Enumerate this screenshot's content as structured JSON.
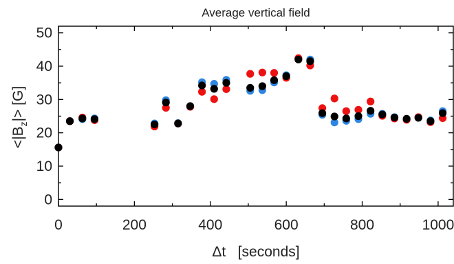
{
  "chart_data": {
    "type": "scatter",
    "title": "Average vertical field",
    "xlabel": "Δt   [seconds]",
    "ylabel_parts": {
      "pre": "<|B",
      "sub": "z",
      "post": "|>   [G]"
    },
    "xlim": [
      0,
      1040
    ],
    "ylim": [
      -2,
      52
    ],
    "x_ticks": [
      0,
      200,
      400,
      600,
      800,
      1000
    ],
    "y_ticks": [
      0,
      10,
      20,
      30,
      40,
      50
    ],
    "x_tick_labels": [
      "0",
      "200",
      "400",
      "600",
      "800",
      "1000"
    ],
    "y_tick_labels": [
      "0",
      "10",
      "20",
      "30",
      "40",
      "50"
    ],
    "grid": false,
    "series": [
      {
        "color": "#2f86e0",
        "points": [
          [
            0,
            15.6
          ],
          [
            30,
            23.5
          ],
          [
            63,
            24.1
          ],
          [
            95,
            24.3
          ],
          [
            253,
            22.8
          ],
          [
            283,
            29.8
          ],
          [
            315,
            22.9
          ],
          [
            347,
            28.0
          ],
          [
            378,
            35.2
          ],
          [
            410,
            34.7
          ],
          [
            442,
            35.9
          ],
          [
            505,
            32.6
          ],
          [
            537,
            32.8
          ],
          [
            568,
            35.1
          ],
          [
            600,
            37.3
          ],
          [
            632,
            42.1
          ],
          [
            663,
            42.0
          ],
          [
            695,
            25.4
          ],
          [
            727,
            23.1
          ],
          [
            758,
            23.6
          ],
          [
            790,
            24.1
          ],
          [
            822,
            25.7
          ],
          [
            853,
            25.7
          ],
          [
            885,
            24.7
          ],
          [
            917,
            24.1
          ],
          [
            948,
            24.6
          ],
          [
            980,
            23.7
          ],
          [
            1012,
            26.5
          ]
        ]
      },
      {
        "color": "#ee1111",
        "points": [
          [
            0,
            15.6
          ],
          [
            30,
            23.5
          ],
          [
            63,
            24.6
          ],
          [
            95,
            23.8
          ],
          [
            253,
            21.9
          ],
          [
            283,
            27.5
          ],
          [
            315,
            22.8
          ],
          [
            347,
            27.8
          ],
          [
            378,
            32.3
          ],
          [
            410,
            30.1
          ],
          [
            442,
            33.1
          ],
          [
            505,
            37.7
          ],
          [
            537,
            38.1
          ],
          [
            568,
            38.0
          ],
          [
            600,
            36.5
          ],
          [
            632,
            42.4
          ],
          [
            663,
            40.2
          ],
          [
            695,
            27.4
          ],
          [
            727,
            30.3
          ],
          [
            758,
            26.5
          ],
          [
            790,
            26.9
          ],
          [
            822,
            29.4
          ],
          [
            853,
            25.1
          ],
          [
            885,
            24.3
          ],
          [
            917,
            23.9
          ],
          [
            948,
            24.7
          ],
          [
            980,
            23.2
          ],
          [
            1012,
            24.4
          ]
        ]
      },
      {
        "color": "#000000",
        "points": [
          [
            0,
            15.6
          ],
          [
            30,
            23.5
          ],
          [
            63,
            24.3
          ],
          [
            95,
            24.1
          ],
          [
            253,
            22.5
          ],
          [
            283,
            29.1
          ],
          [
            315,
            22.8
          ],
          [
            347,
            28.0
          ],
          [
            378,
            34.2
          ],
          [
            410,
            33.2
          ],
          [
            442,
            35.0
          ],
          [
            505,
            33.5
          ],
          [
            537,
            34.0
          ],
          [
            568,
            35.8
          ],
          [
            600,
            37.0
          ],
          [
            632,
            42.0
          ],
          [
            663,
            41.5
          ],
          [
            695,
            25.9
          ],
          [
            727,
            24.9
          ],
          [
            758,
            24.3
          ],
          [
            790,
            25.0
          ],
          [
            822,
            26.6
          ],
          [
            853,
            25.5
          ],
          [
            885,
            24.6
          ],
          [
            917,
            24.2
          ],
          [
            948,
            24.5
          ],
          [
            980,
            23.5
          ],
          [
            1012,
            25.9
          ]
        ]
      }
    ]
  }
}
